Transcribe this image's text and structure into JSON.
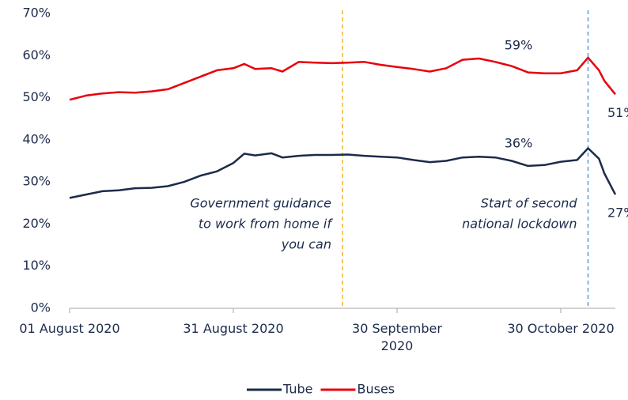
{
  "chart_data": {
    "type": "line",
    "x": [
      "2020-08-01",
      "2020-08-04",
      "2020-08-07",
      "2020-08-10",
      "2020-08-13",
      "2020-08-16",
      "2020-08-19",
      "2020-08-22",
      "2020-08-25",
      "2020-08-28",
      "2020-08-31",
      "2020-09-02",
      "2020-09-04",
      "2020-09-07",
      "2020-09-09",
      "2020-09-12",
      "2020-09-15",
      "2020-09-18",
      "2020-09-21",
      "2020-09-24",
      "2020-09-27",
      "2020-09-30",
      "2020-10-03",
      "2020-10-06",
      "2020-10-09",
      "2020-10-12",
      "2020-10-15",
      "2020-10-18",
      "2020-10-21",
      "2020-10-24",
      "2020-10-27",
      "2020-10-30",
      "2020-11-02",
      "2020-11-04",
      "2020-11-06",
      "2020-11-07",
      "2020-11-09"
    ],
    "series": [
      {
        "name": "Tube",
        "color": "#1c2b4a",
        "values": [
          26.2,
          27,
          27.8,
          28,
          28.5,
          28.6,
          29,
          30,
          31.5,
          32.5,
          34.5,
          36.7,
          36.3,
          36.8,
          35.8,
          36.2,
          36.4,
          36.4,
          36.5,
          36.2,
          36,
          35.8,
          35.2,
          34.7,
          35,
          35.8,
          36,
          35.8,
          35,
          33.8,
          34,
          34.8,
          35.2,
          38,
          35.5,
          32,
          27
        ],
        "value_labels": [
          null,
          null,
          null,
          null,
          null,
          null,
          null,
          null,
          null,
          null,
          null,
          null,
          null,
          null,
          null,
          null,
          null,
          null,
          null,
          null,
          null,
          null,
          null,
          null,
          null,
          null,
          "36%",
          null,
          null,
          null,
          null,
          null,
          null,
          null,
          null,
          null,
          "27%"
        ]
      },
      {
        "name": "Buses",
        "color": "#e8000b",
        "values": [
          49.5,
          50.5,
          51,
          51.3,
          51.2,
          51.5,
          52,
          53.5,
          55,
          56.5,
          57,
          58,
          56.8,
          57,
          56.2,
          58.5,
          58.3,
          58.2,
          58.3,
          58.5,
          57.8,
          57.3,
          56.8,
          56.2,
          57,
          59,
          59.3,
          58.5,
          57.5,
          56,
          55.8,
          55.8,
          56.5,
          59.5,
          56.5,
          54,
          50.8
        ],
        "value_labels": [
          null,
          null,
          null,
          null,
          null,
          null,
          null,
          null,
          null,
          null,
          null,
          null,
          null,
          null,
          null,
          null,
          null,
          null,
          null,
          null,
          null,
          null,
          null,
          null,
          null,
          null,
          "59%",
          null,
          null,
          null,
          null,
          null,
          null,
          null,
          null,
          null,
          "51%"
        ]
      }
    ],
    "xlim": [
      "2020-08-01",
      "2020-11-09"
    ],
    "xticks": [
      {
        "value": "2020-08-01",
        "label": "01 August 2020"
      },
      {
        "value": "2020-08-31",
        "label": "31 August 2020"
      },
      {
        "value": "2020-09-30",
        "label": "30 September 2020"
      },
      {
        "value": "2020-10-30",
        "label": "30 October 2020"
      }
    ],
    "ylim": [
      0,
      70
    ],
    "yticks": [
      {
        "value": 0,
        "label": "0%"
      },
      {
        "value": 10,
        "label": "10%"
      },
      {
        "value": 20,
        "label": "20%"
      },
      {
        "value": 30,
        "label": "30%"
      },
      {
        "value": 40,
        "label": "40%"
      },
      {
        "value": 50,
        "label": "50%"
      },
      {
        "value": 60,
        "label": "60%"
      },
      {
        "value": 70,
        "label": "70%"
      }
    ],
    "vlines": [
      {
        "x": "2020-09-20",
        "color": "#f0b323",
        "label": [
          "Government guidance",
          "to work from home if",
          "you can"
        ]
      },
      {
        "x": "2020-11-04",
        "color": "#5b9bd5",
        "label": [
          "Start of second",
          "national lockdown"
        ]
      }
    ],
    "legend": "bottom"
  }
}
